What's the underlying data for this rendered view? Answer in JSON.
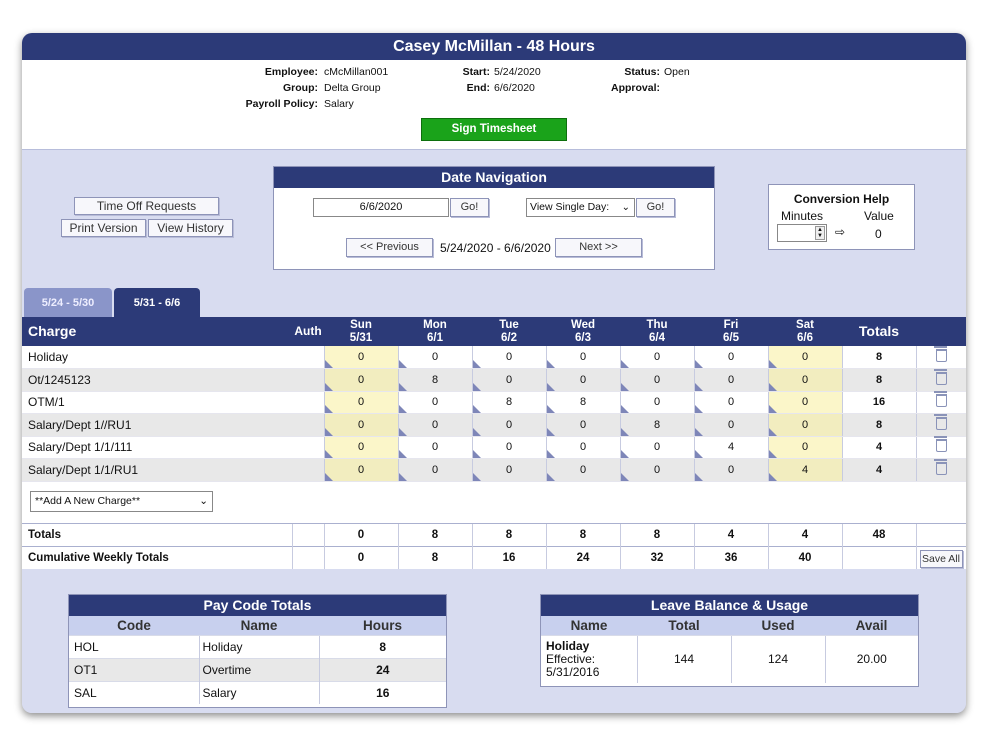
{
  "header": {
    "title": "Casey McMillan - 48 Hours"
  },
  "info": {
    "employee_label": "Employee:",
    "employee": "cMcMillan001",
    "group_label": "Group:",
    "group": "Delta Group",
    "policy_label": "Payroll Policy:",
    "policy": "Salary",
    "start_label": "Start:",
    "start": "5/24/2020",
    "end_label": "End:",
    "end": "6/6/2020",
    "status_label": "Status:",
    "status": "Open",
    "approval_label": "Approval:",
    "approval": ""
  },
  "sign_button": "Sign Timesheet",
  "left_buttons": {
    "time_off": "Time Off Requests",
    "print": "Print Version",
    "history": "View History"
  },
  "date_nav": {
    "title": "Date Navigation",
    "date_value": "6/6/2020",
    "go": "Go!",
    "view_select": "View Single Day:",
    "go2": "Go!",
    "previous": "<< Previous",
    "range": "5/24/2020 - 6/6/2020",
    "next": "Next >>"
  },
  "conversion": {
    "title": "Conversion Help",
    "minutes_label": "Minutes",
    "value_label": "Value",
    "arrow": "⇨",
    "value": "0"
  },
  "tabs": [
    {
      "label": "5/24 - 5/30"
    },
    {
      "label": "5/31 - 6/6"
    }
  ],
  "grid": {
    "charge_header": "Charge",
    "auth_header": "Auth",
    "totals_header": "Totals",
    "days": [
      {
        "day": "Sun",
        "date": "5/31"
      },
      {
        "day": "Mon",
        "date": "6/1"
      },
      {
        "day": "Tue",
        "date": "6/2"
      },
      {
        "day": "Wed",
        "date": "6/3"
      },
      {
        "day": "Thu",
        "date": "6/4"
      },
      {
        "day": "Fri",
        "date": "6/5"
      },
      {
        "day": "Sat",
        "date": "6/6"
      }
    ],
    "rows": [
      {
        "charge": "Holiday",
        "hours": [
          "0",
          "0",
          "0",
          "0",
          "0",
          "0",
          "0"
        ],
        "total": "8"
      },
      {
        "charge": "Ot/1245123",
        "hours": [
          "0",
          "8",
          "0",
          "0",
          "0",
          "0",
          "0"
        ],
        "total": "8"
      },
      {
        "charge": "OTM/1",
        "hours": [
          "0",
          "0",
          "8",
          "8",
          "0",
          "0",
          "0"
        ],
        "total": "16"
      },
      {
        "charge": "Salary/Dept 1//RU1",
        "hours": [
          "0",
          "0",
          "0",
          "0",
          "8",
          "0",
          "0"
        ],
        "total": "8"
      },
      {
        "charge": "Salary/Dept 1/1/111",
        "hours": [
          "0",
          "0",
          "0",
          "0",
          "0",
          "4",
          "0"
        ],
        "total": "4"
      },
      {
        "charge": "Salary/Dept 1/1/RU1",
        "hours": [
          "0",
          "0",
          "0",
          "0",
          "0",
          "0",
          "4"
        ],
        "total": "4"
      }
    ],
    "add_charge": "**Add A New Charge**",
    "totals_label": "Totals",
    "totals": [
      "0",
      "8",
      "8",
      "8",
      "8",
      "4",
      "4"
    ],
    "totals_sum": "48",
    "cumulative_label": "Cumulative Weekly Totals",
    "cumulative": [
      "0",
      "8",
      "16",
      "24",
      "32",
      "36",
      "40"
    ],
    "save_all": "Save All"
  },
  "pay_code_totals": {
    "title": "Pay Code Totals",
    "headers": [
      "Code",
      "Name",
      "Hours"
    ],
    "rows": [
      {
        "code": "HOL",
        "name": "Holiday",
        "hours": "8"
      },
      {
        "code": "OT1",
        "name": "Overtime",
        "hours": "24"
      },
      {
        "code": "SAL",
        "name": "Salary",
        "hours": "16"
      }
    ]
  },
  "leave_balance": {
    "title": "Leave Balance & Usage",
    "headers": [
      "Name",
      "Total",
      "Used",
      "Avail"
    ],
    "rows": [
      {
        "name": "Holiday",
        "effective": "Effective:",
        "effective_date": "5/31/2016",
        "total": "144",
        "used": "124",
        "avail": "20.00"
      }
    ]
  },
  "colors": {
    "header_navy": "#2c3a78",
    "sign_green": "#1aa31a",
    "weekend_yellow": "#fbf6c9",
    "panel_lavender": "#d8dcf0"
  }
}
